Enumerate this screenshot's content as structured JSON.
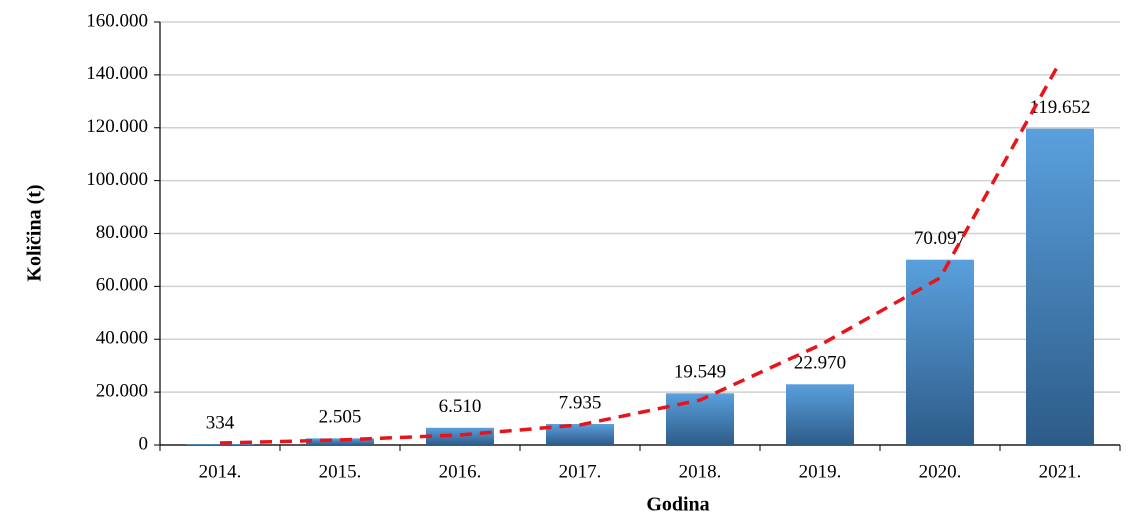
{
  "chart_data": {
    "type": "bar",
    "x_label": "Godina",
    "y_label": "Količina (t)",
    "categories": [
      "2014.",
      "2015.",
      "2016.",
      "2017.",
      "2018.",
      "2019.",
      "2020.",
      "2021."
    ],
    "values": [
      334,
      2505,
      6510,
      7935,
      19549,
      22970,
      70097,
      119652
    ],
    "value_labels": [
      "334",
      "2.505",
      "6.510",
      "7.935",
      "19.549",
      "22.970",
      "70.097",
      "119.652"
    ],
    "color": "#3d7ab8",
    "ylim": [
      0,
      160000
    ],
    "yticks": [
      0,
      {
        "value": 20000,
        "label": "20.000"
      },
      {
        "value": 40000,
        "label": "40.000"
      },
      {
        "value": 60000,
        "label": "60.000"
      },
      {
        "value": 80000,
        "label": "80.000"
      },
      {
        "value": 100000,
        "label": "100.000"
      },
      {
        "value": 120000,
        "label": "120.000"
      },
      {
        "value": 140000,
        "label": "140.000"
      },
      {
        "value": 160000,
        "label": "160.000"
      }
    ],
    "grid": true,
    "trendline": {
      "color": "#e8141b",
      "values": [
        750,
        1900,
        3800,
        7600,
        17000,
        37800,
        63200,
        144900
      ]
    }
  }
}
